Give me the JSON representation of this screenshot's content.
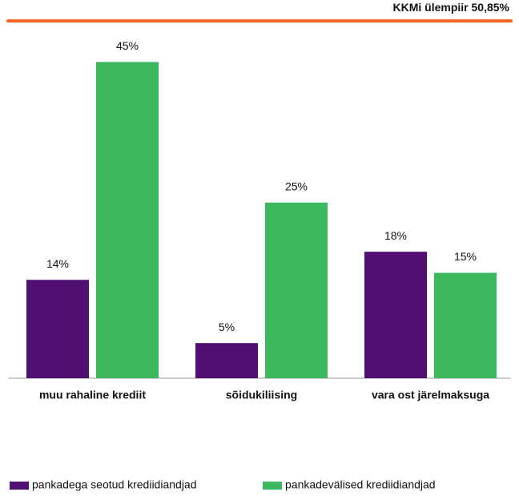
{
  "chart_data": {
    "type": "bar",
    "categories": [
      "muu rahaline krediit",
      "sõidukiliising",
      "vara ost järelmaksuga"
    ],
    "series": [
      {
        "name": "pankadega seotud krediidiandjad",
        "color": "#520f73",
        "values": [
          14,
          5,
          18
        ],
        "value_labels": [
          "14%",
          "5%",
          "18%"
        ]
      },
      {
        "name": "pankadevälised krediidiandjad",
        "color": "#3bb75e",
        "values": [
          45,
          25,
          15
        ],
        "value_labels": [
          "45%",
          "25%",
          "15%"
        ]
      }
    ],
    "ylim": [
      0,
      52
    ],
    "reference_line": {
      "value": 50.85,
      "label": "KKMi ülempiir 50,85%",
      "color": "#f26522"
    },
    "legend": "bottom"
  }
}
